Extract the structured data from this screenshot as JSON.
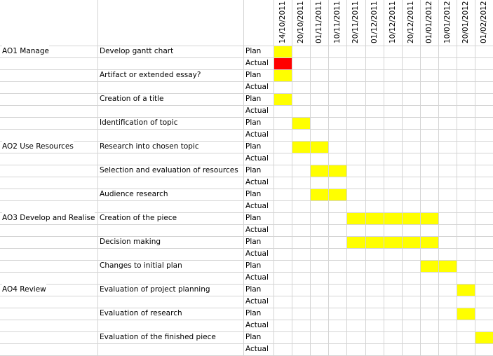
{
  "dates": [
    "14/10/2011",
    "20/10/2011",
    "01/11/2011",
    "10/11/2011",
    "20/11/2011",
    "01/12/2011",
    "10/12/2011",
    "20/12/2011",
    "01/01/2012",
    "10/01/2012",
    "20/01/2012",
    "01/02/2012"
  ],
  "colors": {
    "plan": "#ffff00",
    "actual": "#ff0000",
    "grid": "#d4d4d4"
  },
  "rows": [
    {
      "objective": "AO1 Manage",
      "task": "Develop gantt chart",
      "kind": "Plan",
      "cells": [
        0
      ]
    },
    {
      "objective": "",
      "task": "",
      "kind": "Actual",
      "cells": [
        0
      ]
    },
    {
      "objective": "",
      "task": "Artifact or extended essay?",
      "kind": "Plan",
      "cells": [
        0
      ]
    },
    {
      "objective": "",
      "task": "",
      "kind": "Actual",
      "cells": []
    },
    {
      "objective": "",
      "task": "Creation of a title",
      "kind": "Plan",
      "cells": [
        0
      ]
    },
    {
      "objective": "",
      "task": "",
      "kind": "Actual",
      "cells": []
    },
    {
      "objective": "",
      "task": "Identification of topic",
      "kind": "Plan",
      "cells": [
        1
      ]
    },
    {
      "objective": "",
      "task": "",
      "kind": "Actual",
      "cells": []
    },
    {
      "objective": "AO2 Use Resources",
      "task": "Research into chosen topic",
      "kind": "Plan",
      "cells": [
        1,
        2
      ]
    },
    {
      "objective": "",
      "task": "",
      "kind": "Actual",
      "cells": []
    },
    {
      "objective": "",
      "task": "Selection and evaluation of resources",
      "kind": "Plan",
      "cells": [
        2,
        3
      ]
    },
    {
      "objective": "",
      "task": "",
      "kind": "Actual",
      "cells": []
    },
    {
      "objective": "",
      "task": "Audience research",
      "kind": "Plan",
      "cells": [
        2,
        3
      ]
    },
    {
      "objective": "",
      "task": "",
      "kind": "Actual",
      "cells": []
    },
    {
      "objective": "AO3 Develop and Realise",
      "task": "Creation of the piece",
      "kind": "Plan",
      "cells": [
        4,
        5,
        6,
        7,
        8
      ]
    },
    {
      "objective": "",
      "task": "",
      "kind": "Actual",
      "cells": []
    },
    {
      "objective": "",
      "task": "Decision making",
      "kind": "Plan",
      "cells": [
        4,
        5,
        6,
        7,
        8
      ]
    },
    {
      "objective": "",
      "task": "",
      "kind": "Actual",
      "cells": []
    },
    {
      "objective": "",
      "task": "Changes to initial plan",
      "kind": "Plan",
      "cells": [
        8,
        9
      ]
    },
    {
      "objective": "",
      "task": "",
      "kind": "Actual",
      "cells": []
    },
    {
      "objective": "AO4 Review",
      "task": "Evaluation of project planning",
      "kind": "Plan",
      "cells": [
        10
      ]
    },
    {
      "objective": "",
      "task": "",
      "kind": "Actual",
      "cells": []
    },
    {
      "objective": "",
      "task": "Evaluation of research",
      "kind": "Plan",
      "cells": [
        10
      ]
    },
    {
      "objective": "",
      "task": "",
      "kind": "Actual",
      "cells": []
    },
    {
      "objective": "",
      "task": "Evaluation of the finished piece",
      "kind": "Plan",
      "cells": [
        11
      ]
    },
    {
      "objective": "",
      "task": "",
      "kind": "Actual",
      "cells": []
    }
  ]
}
